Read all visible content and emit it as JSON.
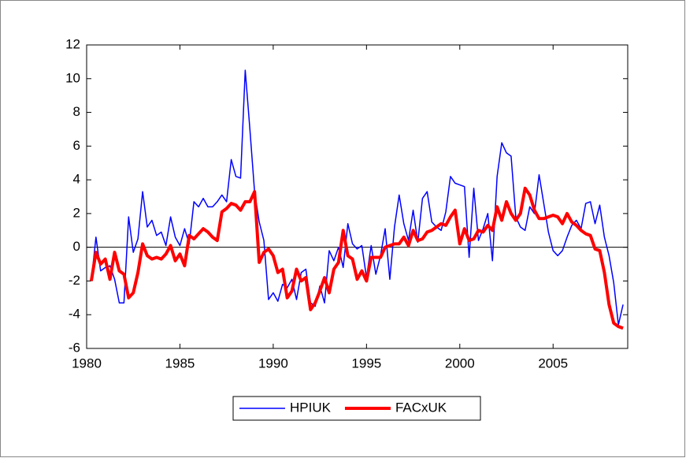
{
  "chart_data": {
    "type": "line",
    "x": [
      1980.25,
      1980.5,
      1980.75,
      1981,
      1981.25,
      1981.5,
      1981.75,
      1982,
      1982.25,
      1982.5,
      1982.75,
      1983,
      1983.25,
      1983.5,
      1983.75,
      1984,
      1984.25,
      1984.5,
      1984.75,
      1985,
      1985.25,
      1985.5,
      1985.75,
      1986,
      1986.25,
      1986.5,
      1986.75,
      1987,
      1987.25,
      1987.5,
      1987.75,
      1988,
      1988.25,
      1988.5,
      1988.75,
      1989,
      1989.25,
      1989.5,
      1989.75,
      1990,
      1990.25,
      1990.5,
      1990.75,
      1991,
      1991.25,
      1991.5,
      1991.75,
      1992,
      1992.25,
      1992.5,
      1992.75,
      1993,
      1993.25,
      1993.5,
      1993.75,
      1994,
      1994.25,
      1994.5,
      1994.75,
      1995,
      1995.25,
      1995.5,
      1995.75,
      1996,
      1996.25,
      1996.5,
      1996.75,
      1997,
      1997.25,
      1997.5,
      1997.75,
      1998,
      1998.25,
      1998.5,
      1998.75,
      1999,
      1999.25,
      1999.5,
      1999.75,
      2000,
      2000.25,
      2000.5,
      2000.75,
      2001,
      2001.25,
      2001.5,
      2001.75,
      2002,
      2002.25,
      2002.5,
      2002.75,
      2003,
      2003.25,
      2003.5,
      2003.75,
      2004,
      2004.25,
      2004.5,
      2004.75,
      2005,
      2005.25,
      2005.5,
      2005.75,
      2006,
      2006.25,
      2006.5,
      2006.75,
      2007,
      2007.25,
      2007.5,
      2007.75,
      2008,
      2008.25,
      2008.5,
      2008.75
    ],
    "series": [
      {
        "name": "HPIUK",
        "color": "#0000ff",
        "width": 1.5,
        "values": [
          -2,
          0.6,
          -1.4,
          -1.2,
          -1.1,
          -1.9,
          -3.3,
          -3.3,
          1.8,
          -0.3,
          0.5,
          3.3,
          1.2,
          1.6,
          0.7,
          0.9,
          0.1,
          1.8,
          0.6,
          0.1,
          1.1,
          0.2,
          2.7,
          2.4,
          2.9,
          2.4,
          2.4,
          2.7,
          3.1,
          2.7,
          5.2,
          4.2,
          4.1,
          10.5,
          7,
          3.3,
          1.5,
          0.4,
          -3.1,
          -2.7,
          -3.2,
          -2.2,
          -2.4,
          -1.9,
          -3.1,
          -1.5,
          -1.3,
          -3.3,
          -3.5,
          -2.3,
          -3.3,
          -0.2,
          -0.8,
          0,
          -1.2,
          1.4,
          0.2,
          -0.1,
          0.1,
          -1.8,
          0.1,
          -1.6,
          -0.5,
          1.1,
          -1.9,
          1.2,
          3.1,
          1.4,
          0.4,
          2.2,
          0.3,
          2.9,
          3.3,
          1.5,
          1.2,
          1.0,
          2.1,
          4.2,
          3.8,
          3.7,
          3.6,
          -0.6,
          3.5,
          0.4,
          1.1,
          2.0,
          -0.8,
          4.2,
          6.2,
          5.6,
          5.4,
          1.8,
          1.2,
          1.0,
          2.4,
          2.0,
          4.3,
          2.6,
          0.9,
          -0.2,
          -0.5,
          -0.2,
          0.6,
          1.3,
          1.6,
          1.1,
          2.6,
          2.7,
          1.4,
          2.5,
          0.6,
          -0.5,
          -2.1,
          -4.6,
          -3.4
        ]
      },
      {
        "name": "FACxUK",
        "color": "#ff0000",
        "width": 4,
        "values": [
          -2.0,
          -0.3,
          -1.0,
          -0.7,
          -1.9,
          -0.3,
          -1.4,
          -1.6,
          -3.0,
          -2.7,
          -1.5,
          0.2,
          -0.5,
          -0.7,
          -0.6,
          -0.7,
          -0.4,
          0.1,
          -0.8,
          -0.4,
          -1.1,
          0.7,
          0.5,
          0.8,
          1.1,
          0.9,
          0.6,
          0.4,
          2.1,
          2.3,
          2.6,
          2.5,
          2.2,
          2.7,
          2.7,
          3.3,
          -0.9,
          -0.3,
          -0.1,
          -0.5,
          -1.5,
          -1.3,
          -3.0,
          -2.6,
          -1.3,
          -2.0,
          -1.8,
          -3.7,
          -3.3,
          -2.6,
          -1.8,
          -2.7,
          -1.3,
          -0.9,
          1.0,
          -0.5,
          -0.7,
          -1.9,
          -1.4,
          -2.0,
          -0.6,
          -0.6,
          -0.6,
          0.0,
          0.1,
          0.2,
          0.2,
          0.6,
          0.1,
          1.0,
          0.4,
          0.5,
          0.9,
          1.0,
          1.2,
          1.4,
          1.3,
          1.8,
          2.2,
          0.2,
          1.1,
          0.4,
          0.5,
          1.0,
          0.9,
          1.3,
          1.0,
          2.4,
          1.6,
          2.7,
          2.0,
          1.6,
          2.0,
          3.5,
          3.1,
          2.2,
          1.7,
          1.7,
          1.8,
          1.9,
          1.8,
          1.4,
          2.0,
          1.5,
          1.3,
          1.0,
          0.8,
          0.7,
          -0.1,
          -0.2,
          -1.5,
          -3.4,
          -4.5,
          -4.7,
          -4.8
        ]
      }
    ],
    "xlim": [
      1980,
      2009
    ],
    "xticks": [
      1980,
      1985,
      1990,
      1995,
      2000,
      2005
    ],
    "ylim": [
      -6,
      12
    ],
    "yticks": [
      -6,
      -4,
      -2,
      0,
      2,
      4,
      6,
      8,
      10,
      12
    ],
    "zero_line": true,
    "grid": false,
    "legend": "bottom"
  }
}
